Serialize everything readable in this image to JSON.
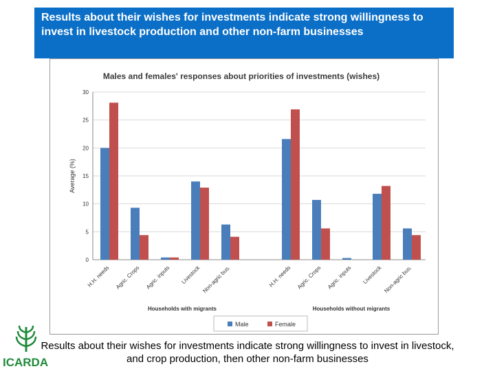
{
  "slide": {
    "title": "Results about their wishes for investments indicate strong willingness to invest in livestock production and other non-farm businesses",
    "caption_line1": "Results about their wishes for investments indicate strong willingness to invest in livestock,",
    "caption_line2": "and crop production, then other non-farm businesses",
    "logo_text": "ICARDA"
  },
  "colors": {
    "banner": "#0b6fc7",
    "male": "#4a7ebb",
    "female": "#c0504d",
    "logo": "#1f8a3a"
  },
  "chart_data": {
    "type": "bar",
    "title": "Males and females' responses about priorities of investments (wishes)",
    "ylabel": "Average (%)",
    "ylim": [
      0,
      30
    ],
    "yticks": [
      0,
      5,
      10,
      15,
      20,
      25,
      30
    ],
    "grid": true,
    "legend_position": "bottom",
    "groups": [
      {
        "label": "Households with migrants",
        "categories": [
          "H.H. needs",
          "Agric. Crops",
          "Agric. inputs",
          "Livestock",
          "Non-agric bus."
        ]
      },
      {
        "label": "Households without migrants",
        "categories": [
          "H.H. needs",
          "Agric. Crops",
          "Agric. inputs",
          "Livestock",
          "Non-agric bus."
        ]
      }
    ],
    "series": [
      {
        "name": "Male",
        "values": [
          [
            20,
            9.3,
            0.4,
            14,
            6.3
          ],
          [
            21.6,
            10.7,
            0.3,
            11.8,
            5.6
          ]
        ]
      },
      {
        "name": "Female",
        "values": [
          [
            28.1,
            4.4,
            0.4,
            12.9,
            4.1
          ],
          [
            26.9,
            5.6,
            0,
            13.2,
            4.4
          ]
        ]
      }
    ]
  }
}
